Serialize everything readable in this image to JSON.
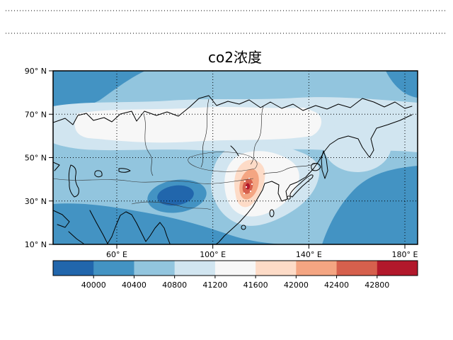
{
  "chart_data": {
    "type": "heatmap",
    "subtype": "filled-contour-map",
    "title": "co2浓度",
    "x_axis": {
      "label": "",
      "range_deg_east": [
        33,
        187
      ],
      "ticks": [
        {
          "value": 60,
          "label": "60° E"
        },
        {
          "value": 100,
          "label": "100° E"
        },
        {
          "value": 140,
          "label": "140° E"
        },
        {
          "value": 180,
          "label": "180° E"
        }
      ]
    },
    "y_axis": {
      "label": "",
      "range_deg_north": [
        10,
        90
      ],
      "ticks": [
        {
          "value": 90,
          "label": "90° N"
        },
        {
          "value": 70,
          "label": "70° N"
        },
        {
          "value": 50,
          "label": "50° N"
        },
        {
          "value": 30,
          "label": "30° N"
        },
        {
          "value": 10,
          "label": "10° N"
        }
      ]
    },
    "colorbar": {
      "orientation": "horizontal",
      "extend": "both",
      "levels": [
        40000,
        40400,
        40800,
        41200,
        41600,
        42000,
        42400,
        42800
      ],
      "colors": [
        "#2166ac",
        "#4393c3",
        "#92c5de",
        "#d1e5f0",
        "#f7f7f7",
        "#fddbc7",
        "#f4a582",
        "#d6604d",
        "#b2182b"
      ]
    },
    "gridlines": {
      "style": "dotted",
      "color": "#000000"
    },
    "features": [
      {
        "name": "low-center-tibetan-plateau",
        "approx_lon": 85,
        "approx_lat": 32,
        "approx_value": "< 40000"
      },
      {
        "name": "high-center-east-china",
        "approx_lon": 114,
        "approx_lat": 33,
        "approx_value": "> 42800"
      }
    ]
  }
}
